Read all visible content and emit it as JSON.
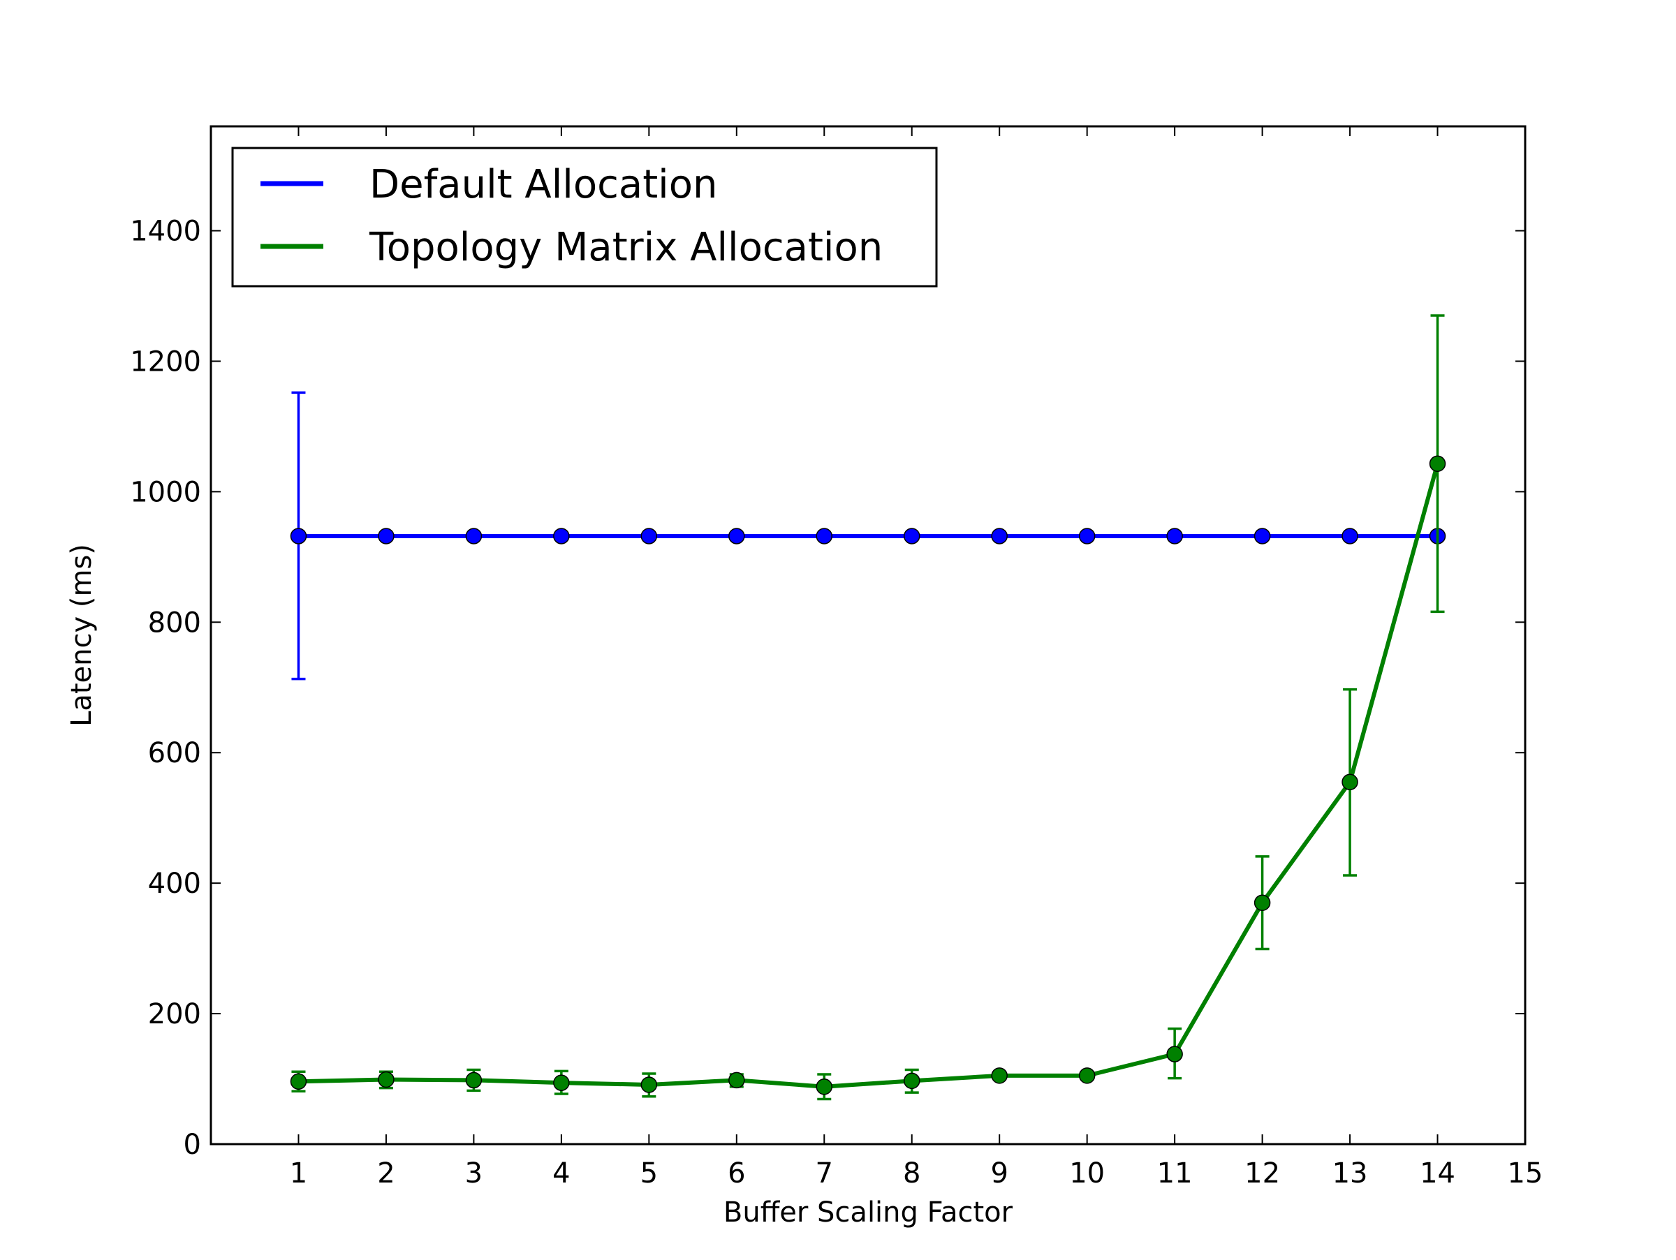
{
  "chart_data": {
    "type": "line",
    "title": "",
    "xlabel": "Buffer Scaling Factor",
    "ylabel": "Latency (ms)",
    "xlim": [
      0,
      15
    ],
    "ylim": [
      0,
      1560
    ],
    "xticks": [
      1,
      2,
      3,
      4,
      5,
      6,
      7,
      8,
      9,
      10,
      11,
      12,
      13,
      14,
      15
    ],
    "yticks": [
      0,
      200,
      400,
      600,
      800,
      1000,
      1200,
      1400
    ],
    "grid": false,
    "legend_position": "upper left",
    "x": [
      1,
      2,
      3,
      4,
      5,
      6,
      7,
      8,
      9,
      10,
      11,
      12,
      13,
      14
    ],
    "series": [
      {
        "name": "Default Allocation",
        "color": "#0000ff",
        "values": [
          932,
          932,
          932,
          932,
          932,
          932,
          932,
          932,
          932,
          932,
          932,
          932,
          932,
          932
        ],
        "error_low": [
          713,
          null,
          null,
          null,
          null,
          null,
          null,
          null,
          null,
          null,
          null,
          null,
          null,
          null
        ],
        "error_high": [
          1152,
          null,
          null,
          null,
          null,
          null,
          null,
          null,
          null,
          null,
          null,
          null,
          null,
          null
        ]
      },
      {
        "name": "Topology Matrix Allocation",
        "color": "#008000",
        "values": [
          96,
          99,
          98,
          94,
          91,
          98,
          88,
          97,
          105,
          105,
          138,
          370,
          555,
          1043
        ],
        "error_low": [
          81,
          86,
          82,
          77,
          73,
          88,
          69,
          79,
          105,
          105,
          101,
          299,
          412,
          816
        ],
        "error_high": [
          111,
          111,
          114,
          112,
          108,
          107,
          107,
          114,
          105,
          105,
          177,
          441,
          697,
          1270
        ]
      }
    ]
  }
}
